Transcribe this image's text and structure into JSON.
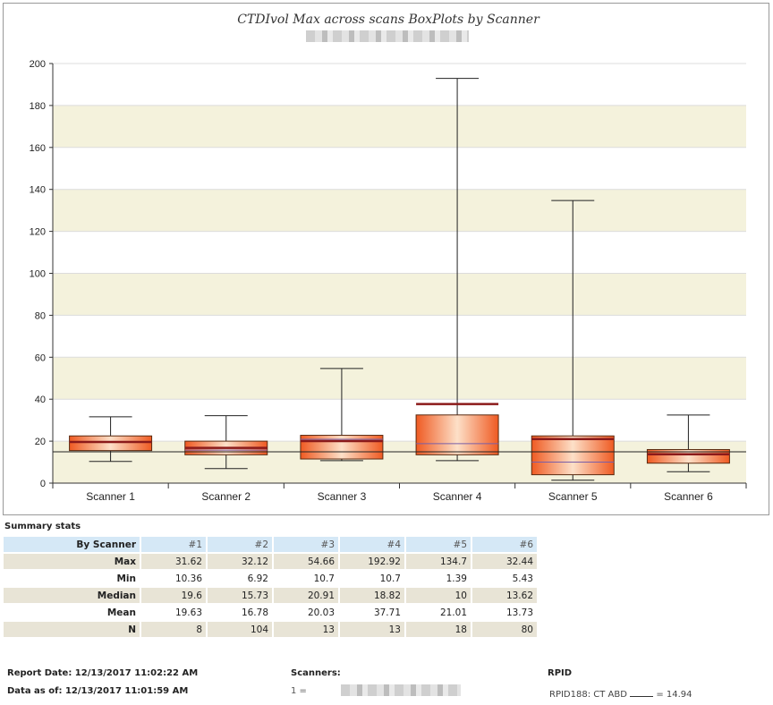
{
  "chart_data": {
    "type": "boxplot",
    "title": "CTDIvol Max across scans BoxPlots by Scanner",
    "ylim": [
      0,
      200
    ],
    "yticks": [
      0,
      20,
      40,
      60,
      80,
      100,
      120,
      140,
      160,
      180,
      200
    ],
    "categories": [
      "Scanner 1",
      "Scanner 2",
      "Scanner 3",
      "Scanner 4",
      "Scanner 5",
      "Scanner 6"
    ],
    "boxes": [
      {
        "min": 10.36,
        "q1": 15.5,
        "median": 19.6,
        "q3": 22.5,
        "max": 31.62,
        "mean": 19.63
      },
      {
        "min": 6.92,
        "q1": 13.5,
        "median": 15.73,
        "q3": 20.0,
        "max": 32.12,
        "mean": 16.78
      },
      {
        "min": 10.7,
        "q1": 11.5,
        "median": 20.91,
        "q3": 22.8,
        "max": 54.66,
        "mean": 20.03
      },
      {
        "min": 10.7,
        "q1": 13.5,
        "median": 18.82,
        "q3": 32.5,
        "max": 192.92,
        "mean": 37.71
      },
      {
        "min": 1.39,
        "q1": 4.0,
        "median": 10,
        "q3": 22.5,
        "max": 134.7,
        "mean": 21.01
      },
      {
        "min": 5.43,
        "q1": 9.5,
        "median": 13.62,
        "q3": 16.0,
        "max": 32.44,
        "mean": 13.73
      }
    ],
    "reference_line": 14.94,
    "colors": {
      "box_light": "#fde0c8",
      "box_dark": "#ef5a22",
      "mean_line": "#8b1a1a",
      "median_line": "#7a5fa8",
      "band": "#f4f2dc"
    }
  },
  "summary": {
    "label": "Summary stats",
    "header": [
      "By Scanner",
      "#1",
      "#2",
      "#3",
      "#4",
      "#5",
      "#6"
    ],
    "rows": [
      {
        "label": "Max",
        "values": [
          "31.62",
          "32.12",
          "54.66",
          "192.92",
          "134.7",
          "32.44"
        ]
      },
      {
        "label": "Min",
        "values": [
          "10.36",
          "6.92",
          "10.7",
          "10.7",
          "1.39",
          "5.43"
        ]
      },
      {
        "label": "Median",
        "values": [
          "19.6",
          "15.73",
          "20.91",
          "18.82",
          "10",
          "13.62"
        ]
      },
      {
        "label": "Mean",
        "values": [
          "19.63",
          "16.78",
          "20.03",
          "37.71",
          "21.01",
          "13.73"
        ]
      },
      {
        "label": "N",
        "values": [
          "8",
          "104",
          "13",
          "13",
          "18",
          "80"
        ]
      }
    ]
  },
  "footer": {
    "report_date": "Report Date: 12/13/2017 11:02:22 AM",
    "data_as_of": "Data as of: 12/13/2017 11:01:59 AM",
    "scanners_label": "Scanners:",
    "scanner_line": "1 =",
    "rpid_label": "RPID",
    "rpid_prefix": "RPID188: CT ABD",
    "rpid_suffix": "= 14.94"
  }
}
